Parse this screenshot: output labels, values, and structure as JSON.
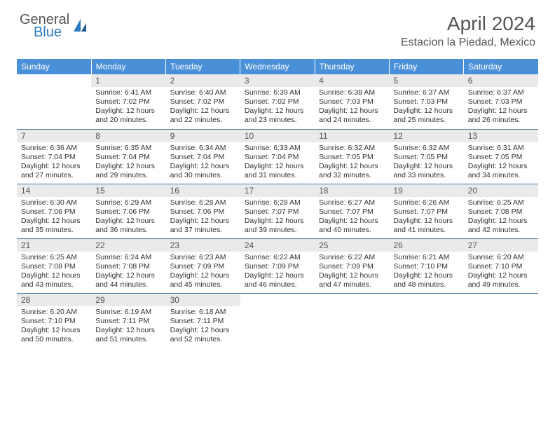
{
  "brand": {
    "line1": "General",
    "line2": "Blue"
  },
  "title": "April 2024",
  "location": "Estacion la Piedad, Mexico",
  "colors": {
    "header_bg": "#4a90d9",
    "header_text": "#ffffff",
    "daynum_bg": "#eaeaea",
    "row_border": "#4a7aa8",
    "page_bg": "#ffffff",
    "brand_gray": "#555555",
    "brand_blue": "#2c7bc0"
  },
  "days_of_week": [
    "Sunday",
    "Monday",
    "Tuesday",
    "Wednesday",
    "Thursday",
    "Friday",
    "Saturday"
  ],
  "start_weekday": 1,
  "days": [
    {
      "n": 1,
      "sunrise": "6:41 AM",
      "sunset": "7:02 PM",
      "daylight": "12 hours and 20 minutes."
    },
    {
      "n": 2,
      "sunrise": "6:40 AM",
      "sunset": "7:02 PM",
      "daylight": "12 hours and 22 minutes."
    },
    {
      "n": 3,
      "sunrise": "6:39 AM",
      "sunset": "7:02 PM",
      "daylight": "12 hours and 23 minutes."
    },
    {
      "n": 4,
      "sunrise": "6:38 AM",
      "sunset": "7:03 PM",
      "daylight": "12 hours and 24 minutes."
    },
    {
      "n": 5,
      "sunrise": "6:37 AM",
      "sunset": "7:03 PM",
      "daylight": "12 hours and 25 minutes."
    },
    {
      "n": 6,
      "sunrise": "6:37 AM",
      "sunset": "7:03 PM",
      "daylight": "12 hours and 26 minutes."
    },
    {
      "n": 7,
      "sunrise": "6:36 AM",
      "sunset": "7:04 PM",
      "daylight": "12 hours and 27 minutes."
    },
    {
      "n": 8,
      "sunrise": "6:35 AM",
      "sunset": "7:04 PM",
      "daylight": "12 hours and 29 minutes."
    },
    {
      "n": 9,
      "sunrise": "6:34 AM",
      "sunset": "7:04 PM",
      "daylight": "12 hours and 30 minutes."
    },
    {
      "n": 10,
      "sunrise": "6:33 AM",
      "sunset": "7:04 PM",
      "daylight": "12 hours and 31 minutes."
    },
    {
      "n": 11,
      "sunrise": "6:32 AM",
      "sunset": "7:05 PM",
      "daylight": "12 hours and 32 minutes."
    },
    {
      "n": 12,
      "sunrise": "6:32 AM",
      "sunset": "7:05 PM",
      "daylight": "12 hours and 33 minutes."
    },
    {
      "n": 13,
      "sunrise": "6:31 AM",
      "sunset": "7:05 PM",
      "daylight": "12 hours and 34 minutes."
    },
    {
      "n": 14,
      "sunrise": "6:30 AM",
      "sunset": "7:06 PM",
      "daylight": "12 hours and 35 minutes."
    },
    {
      "n": 15,
      "sunrise": "6:29 AM",
      "sunset": "7:06 PM",
      "daylight": "12 hours and 36 minutes."
    },
    {
      "n": 16,
      "sunrise": "6:28 AM",
      "sunset": "7:06 PM",
      "daylight": "12 hours and 37 minutes."
    },
    {
      "n": 17,
      "sunrise": "6:28 AM",
      "sunset": "7:07 PM",
      "daylight": "12 hours and 39 minutes."
    },
    {
      "n": 18,
      "sunrise": "6:27 AM",
      "sunset": "7:07 PM",
      "daylight": "12 hours and 40 minutes."
    },
    {
      "n": 19,
      "sunrise": "6:26 AM",
      "sunset": "7:07 PM",
      "daylight": "12 hours and 41 minutes."
    },
    {
      "n": 20,
      "sunrise": "6:25 AM",
      "sunset": "7:08 PM",
      "daylight": "12 hours and 42 minutes."
    },
    {
      "n": 21,
      "sunrise": "6:25 AM",
      "sunset": "7:08 PM",
      "daylight": "12 hours and 43 minutes."
    },
    {
      "n": 22,
      "sunrise": "6:24 AM",
      "sunset": "7:08 PM",
      "daylight": "12 hours and 44 minutes."
    },
    {
      "n": 23,
      "sunrise": "6:23 AM",
      "sunset": "7:09 PM",
      "daylight": "12 hours and 45 minutes."
    },
    {
      "n": 24,
      "sunrise": "6:22 AM",
      "sunset": "7:09 PM",
      "daylight": "12 hours and 46 minutes."
    },
    {
      "n": 25,
      "sunrise": "6:22 AM",
      "sunset": "7:09 PM",
      "daylight": "12 hours and 47 minutes."
    },
    {
      "n": 26,
      "sunrise": "6:21 AM",
      "sunset": "7:10 PM",
      "daylight": "12 hours and 48 minutes."
    },
    {
      "n": 27,
      "sunrise": "6:20 AM",
      "sunset": "7:10 PM",
      "daylight": "12 hours and 49 minutes."
    },
    {
      "n": 28,
      "sunrise": "6:20 AM",
      "sunset": "7:10 PM",
      "daylight": "12 hours and 50 minutes."
    },
    {
      "n": 29,
      "sunrise": "6:19 AM",
      "sunset": "7:11 PM",
      "daylight": "12 hours and 51 minutes."
    },
    {
      "n": 30,
      "sunrise": "6:18 AM",
      "sunset": "7:11 PM",
      "daylight": "12 hours and 52 minutes."
    }
  ],
  "labels": {
    "sunrise": "Sunrise:",
    "sunset": "Sunset:",
    "daylight": "Daylight:"
  }
}
